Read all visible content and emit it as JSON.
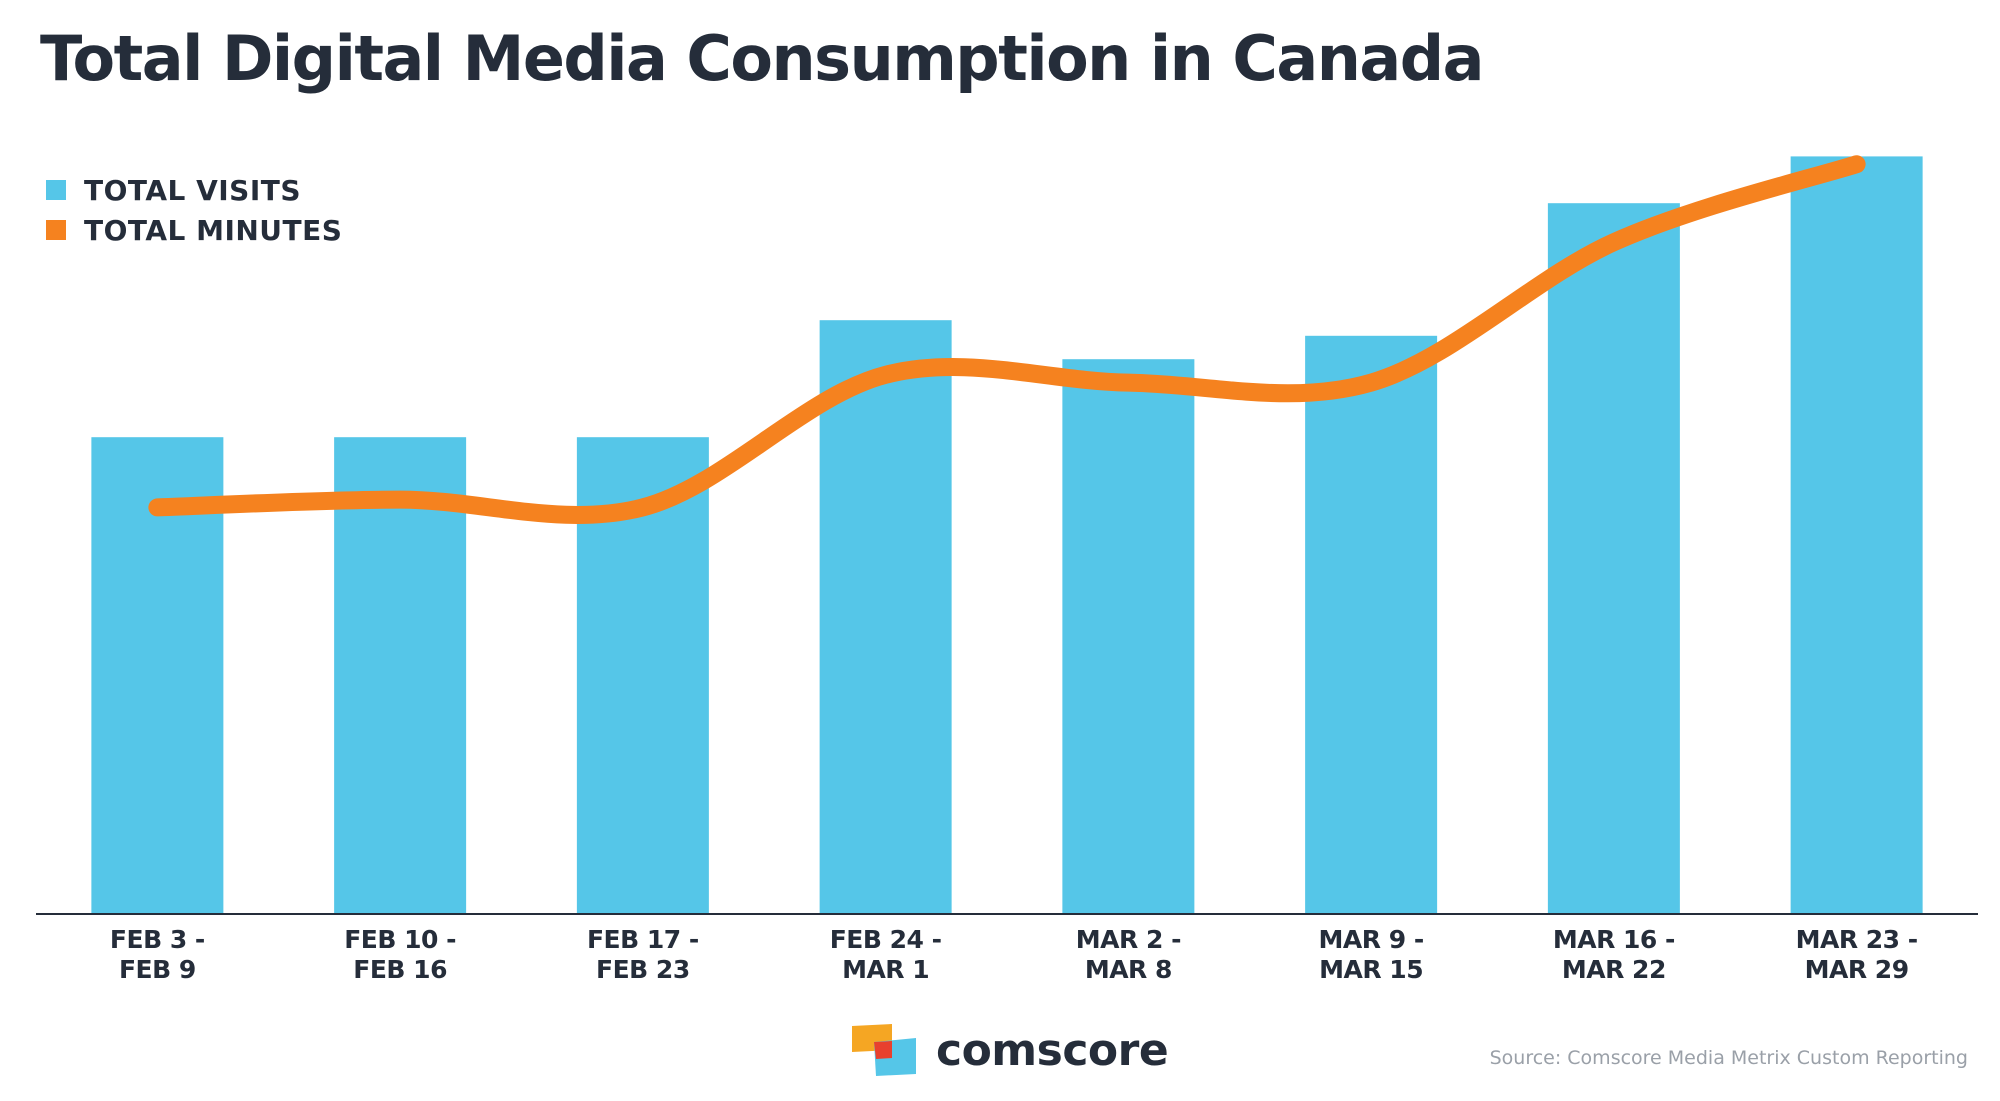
{
  "chart_data": {
    "type": "bar",
    "title": "Total Digital Media Consumption in Canada",
    "categories": [
      [
        "FEB 3 -",
        "FEB 9"
      ],
      [
        "FEB 10 -",
        "FEB 16"
      ],
      [
        "FEB 17 -",
        "FEB 23"
      ],
      [
        "FEB 24 -",
        "MAR 1"
      ],
      [
        "MAR 2 -",
        "MAR 8"
      ],
      [
        "MAR 9 -",
        "MAR 15"
      ],
      [
        "MAR 16 -",
        "MAR 22"
      ],
      [
        "MAR 23 -",
        "MAR 29"
      ]
    ],
    "series": [
      {
        "name": "TOTAL VISITS",
        "type": "bar",
        "color": "#55c6e8",
        "values": [
          61,
          61,
          61,
          76,
          71,
          74,
          91,
          97
        ]
      },
      {
        "name": "TOTAL MINUTES",
        "type": "line",
        "color": "#f5821f",
        "values": [
          52,
          53,
          52,
          69,
          68,
          68,
          86,
          96
        ]
      }
    ],
    "xlabel": "",
    "ylabel": "",
    "ylim": [
      0,
      100
    ],
    "grid": false,
    "legend": "top-left",
    "y_axis_labels": false
  },
  "brand": {
    "name": "comscore",
    "logo_colors": [
      "#f5a623",
      "#55c6e8",
      "#e8402e"
    ]
  },
  "source": "Source: Comscore Media Metrix Custom Reporting"
}
